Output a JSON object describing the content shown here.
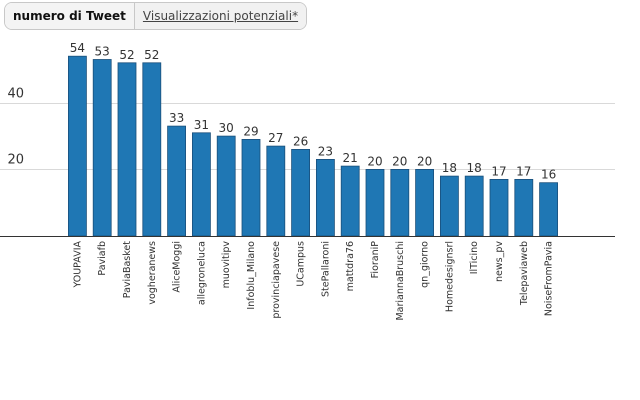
{
  "tabs": [
    {
      "label": "numero di Tweet",
      "active": true
    },
    {
      "label": "Visualizzazioni potenziali*",
      "active": false
    }
  ],
  "chart_data": {
    "type": "bar",
    "categories": [
      "YOUPAVIA",
      "Paviafb",
      "PaviaBasket",
      "vogheranews",
      "AliceMoggi",
      "allegroneluca",
      "muovitipv",
      "Infoblu_Milano",
      "provinciapavese",
      "UCampus",
      "StePallaroni",
      "mattdra76",
      "FioraniP",
      "MariannaBruschi",
      "qn_giorno",
      "Homedesignsrl",
      "IlTicino",
      "news_pv",
      "Telepaviaweb",
      "NoiseFromPavia"
    ],
    "values": [
      54,
      53,
      52,
      52,
      33,
      31,
      30,
      29,
      27,
      26,
      23,
      21,
      20,
      20,
      20,
      18,
      18,
      17,
      17,
      16
    ],
    "y_ticks": [
      20,
      40
    ],
    "ylim": [
      0,
      60
    ],
    "grid": true,
    "data_labels": true,
    "colors": {
      "bar": "#1f77b4",
      "bar_edge": "#1a4f7a",
      "grid": "#d9d9d9",
      "axis": "#333333",
      "text": "#333333"
    }
  }
}
